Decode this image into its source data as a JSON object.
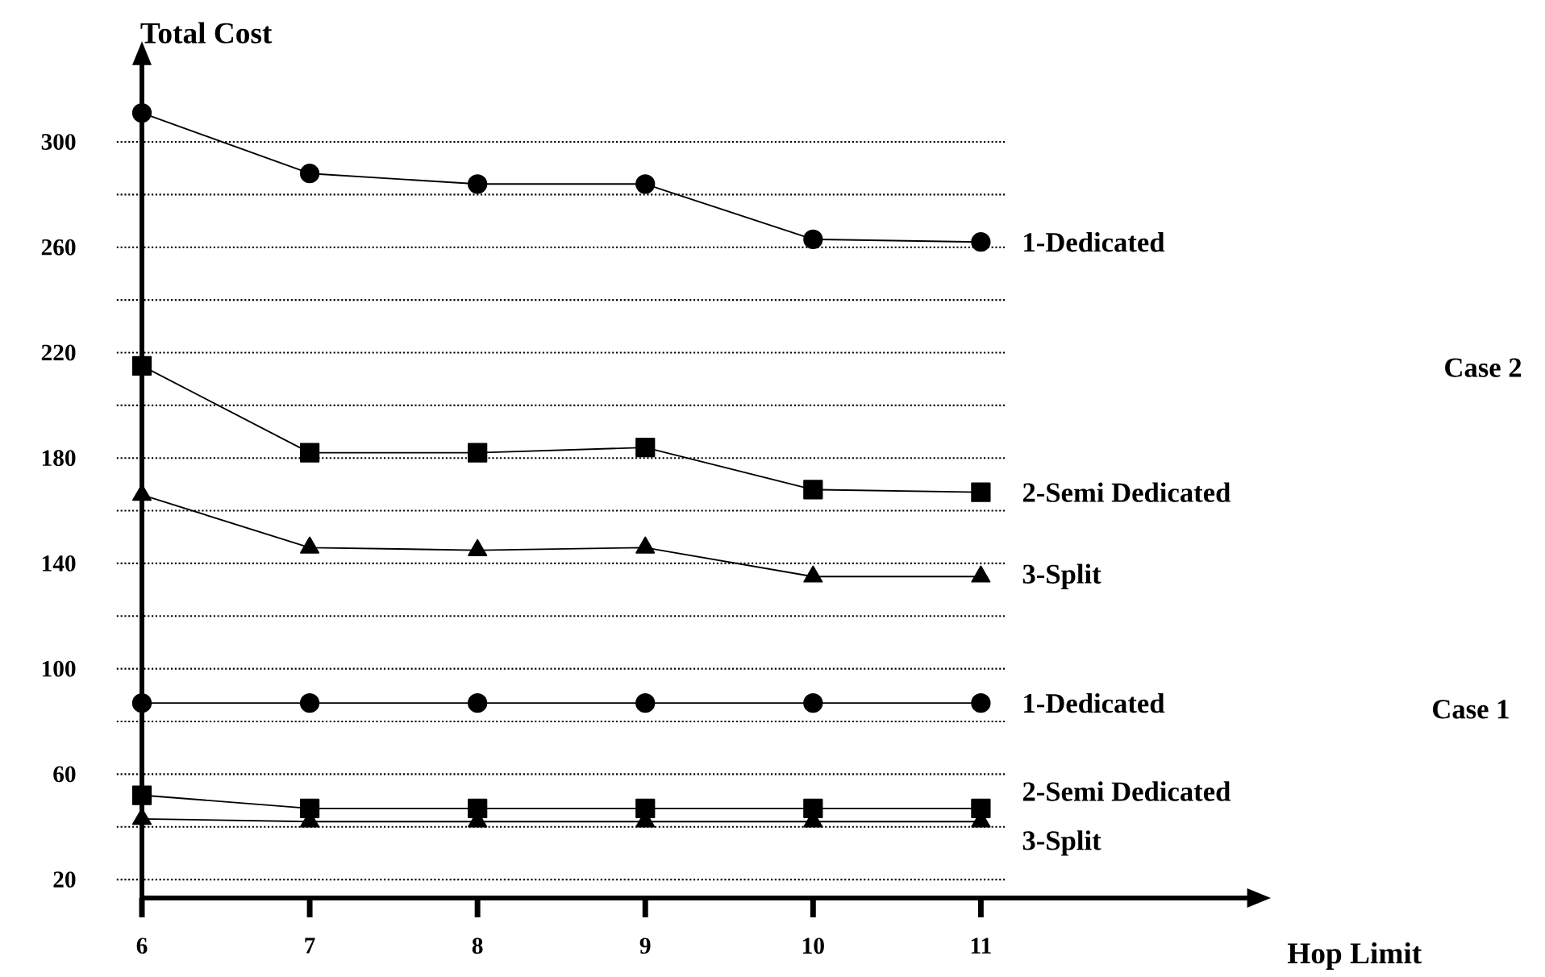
{
  "chart_data": {
    "type": "line",
    "xlabel": "Hop Limit",
    "ylabel": "Total Cost",
    "x": [
      6,
      7,
      8,
      9,
      10,
      11
    ],
    "series": [
      {
        "name": "1-Dedicated",
        "color": "#000000",
        "marker": "circle",
        "values": [
          311,
          288,
          284,
          284,
          263,
          262
        ]
      },
      {
        "name": "2-Semi Dedicated",
        "color": "#000000",
        "marker": "square",
        "values": [
          215,
          182,
          182,
          184,
          168,
          167
        ]
      },
      {
        "name": "3-Split",
        "color": "#000000",
        "marker": "triangle",
        "values": [
          166,
          146,
          145,
          146,
          135,
          135
        ]
      },
      {
        "name": "1-Dedicated",
        "color": "#000000",
        "marker": "circle",
        "values": [
          87,
          87,
          87,
          87,
          87,
          87
        ]
      },
      {
        "name": "2-Semi Dedicated",
        "color": "#000000",
        "marker": "square",
        "values": [
          52,
          47,
          47,
          47,
          47,
          47
        ]
      },
      {
        "name": "3-Split",
        "color": "#000000",
        "marker": "triangle",
        "values": [
          43,
          42,
          42,
          42,
          42,
          42
        ]
      }
    ],
    "annotations": [
      "Case 2",
      "Case 1"
    ],
    "xlim": [
      6,
      12.6
    ],
    "ylim": [
      13,
      330
    ],
    "xticks": [
      6,
      7,
      8,
      9,
      10,
      11
    ],
    "yticks": [
      20,
      {
        "value": 40,
        "label": null
      },
      60,
      {
        "value": 80,
        "label": null
      },
      100,
      {
        "value": 120,
        "label": null
      },
      140,
      {
        "value": 160,
        "label": null
      },
      180,
      {
        "value": 200,
        "label": null
      },
      220,
      {
        "value": 240,
        "label": null
      },
      260,
      {
        "value": 280,
        "label": null
      },
      300
    ],
    "grid": "y",
    "line_style": "solid"
  }
}
